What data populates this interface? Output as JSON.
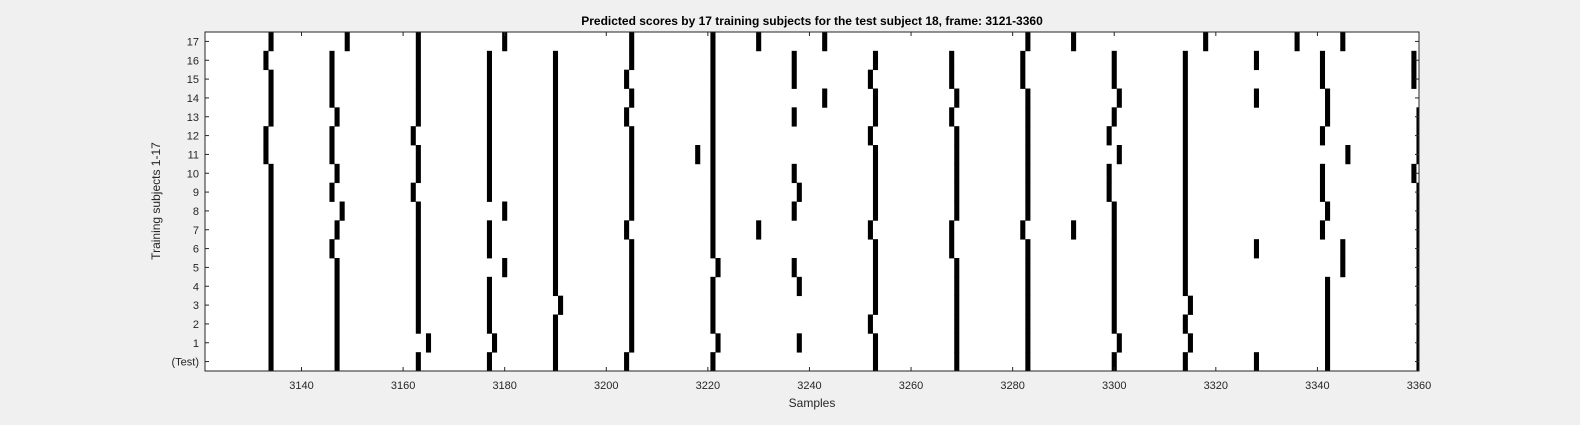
{
  "chart_data": {
    "type": "heatmap",
    "title": "Predicted scores by 17 training subjects for the test subject 18, frame: 3121-3360",
    "xlabel": "Samples",
    "ylabel": "Training subjects 1-17",
    "xlim": [
      3121,
      3360
    ],
    "x_ticks": [
      3140,
      3160,
      3180,
      3200,
      3220,
      3240,
      3260,
      3280,
      3300,
      3320,
      3340,
      3360
    ],
    "y_tick_labels": [
      "(Test)",
      "1",
      "2",
      "3",
      "4",
      "5",
      "6",
      "7",
      "8",
      "9",
      "10",
      "11",
      "12",
      "13",
      "14",
      "15",
      "16",
      "17"
    ],
    "colors": {
      "mark": "#000000",
      "background": "#ffffff",
      "axis": "#262626"
    },
    "rows": [
      {
        "label": "(Test)",
        "x": [
          3134,
          3147,
          3163,
          3177,
          3190,
          3204,
          3221,
          3253,
          3269,
          3283,
          3300,
          3314,
          3328,
          3342,
          3360
        ]
      },
      {
        "label": "1",
        "x": [
          3134,
          3147,
          3165,
          3178,
          3190,
          3205,
          3222,
          3238,
          3253,
          3269,
          3283,
          3301,
          3315,
          3342,
          3360
        ]
      },
      {
        "label": "2",
        "x": [
          3134,
          3147,
          3163,
          3177,
          3190,
          3205,
          3221,
          3252,
          3269,
          3283,
          3300,
          3314,
          3342,
          3360
        ]
      },
      {
        "label": "3",
        "x": [
          3134,
          3147,
          3163,
          3177,
          3191,
          3205,
          3221,
          3253,
          3269,
          3283,
          3300,
          3315,
          3342,
          3360
        ]
      },
      {
        "label": "4",
        "x": [
          3134,
          3147,
          3163,
          3177,
          3190,
          3205,
          3221,
          3238,
          3253,
          3269,
          3283,
          3300,
          3314,
          3342,
          3360
        ]
      },
      {
        "label": "5",
        "x": [
          3134,
          3147,
          3163,
          3180,
          3190,
          3205,
          3222,
          3237,
          3253,
          3269,
          3283,
          3300,
          3314,
          3345,
          3360
        ]
      },
      {
        "label": "6",
        "x": [
          3134,
          3146,
          3163,
          3177,
          3190,
          3205,
          3221,
          3253,
          3268,
          3283,
          3300,
          3314,
          3328,
          3345,
          3360
        ]
      },
      {
        "label": "7",
        "x": [
          3134,
          3147,
          3163,
          3177,
          3190,
          3204,
          3221,
          3230,
          3252,
          3268,
          3282,
          3292,
          3300,
          3314,
          3341,
          3360
        ]
      },
      {
        "label": "8",
        "x": [
          3134,
          3148,
          3163,
          3180,
          3190,
          3205,
          3221,
          3237,
          3253,
          3269,
          3283,
          3300,
          3314,
          3342,
          3360
        ]
      },
      {
        "label": "9",
        "x": [
          3134,
          3146,
          3162,
          3177,
          3190,
          3205,
          3221,
          3238,
          3253,
          3269,
          3283,
          3299,
          3314,
          3341,
          3360
        ]
      },
      {
        "label": "10",
        "x": [
          3134,
          3147,
          3163,
          3177,
          3190,
          3205,
          3221,
          3237,
          3253,
          3269,
          3283,
          3299,
          3314,
          3341,
          3359
        ]
      },
      {
        "label": "11",
        "x": [
          3133,
          3146,
          3163,
          3177,
          3190,
          3205,
          3218,
          3221,
          3253,
          3269,
          3283,
          3301,
          3314,
          3346,
          3360
        ]
      },
      {
        "label": "12",
        "x": [
          3133,
          3146,
          3162,
          3177,
          3190,
          3205,
          3221,
          3252,
          3269,
          3283,
          3299,
          3314,
          3341,
          3360
        ]
      },
      {
        "label": "13",
        "x": [
          3134,
          3147,
          3163,
          3177,
          3190,
          3204,
          3221,
          3237,
          3253,
          3268,
          3283,
          3300,
          3314,
          3342,
          3360
        ]
      },
      {
        "label": "14",
        "x": [
          3134,
          3146,
          3163,
          3177,
          3190,
          3205,
          3221,
          3243,
          3253,
          3269,
          3283,
          3301,
          3314,
          3328,
          3342,
          3361
        ]
      },
      {
        "label": "15",
        "x": [
          3134,
          3146,
          3163,
          3177,
          3190,
          3204,
          3221,
          3237,
          3252,
          3268,
          3282,
          3300,
          3314,
          3341,
          3359
        ]
      },
      {
        "label": "16",
        "x": [
          3133,
          3146,
          3163,
          3177,
          3190,
          3205,
          3221,
          3237,
          3253,
          3268,
          3282,
          3300,
          3314,
          3328,
          3341,
          3359
        ]
      },
      {
        "label": "17",
        "x": [
          3134,
          3149,
          3163,
          3180,
          3205,
          3221,
          3230,
          3243,
          3283,
          3292,
          3318,
          3336,
          3345
        ]
      }
    ]
  }
}
